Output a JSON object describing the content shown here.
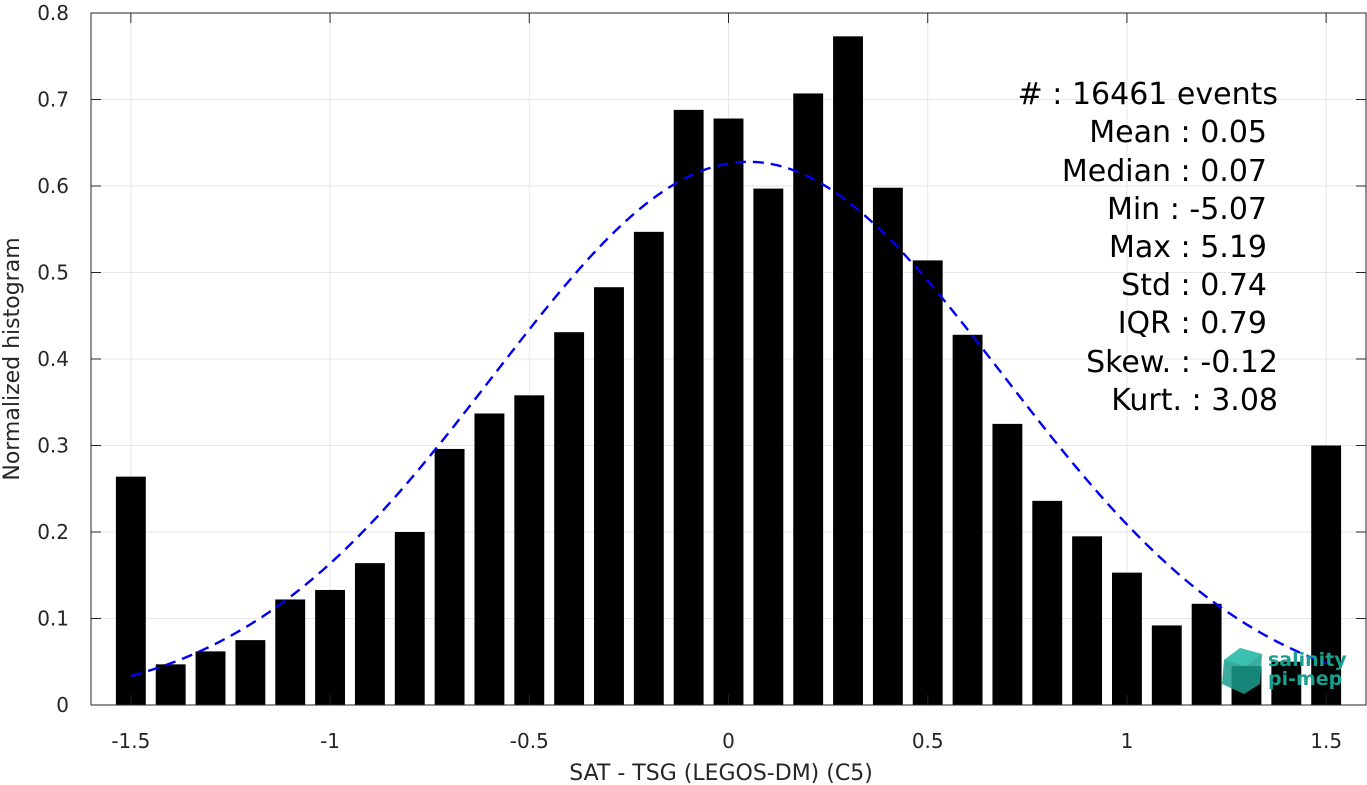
{
  "chart_data": {
    "type": "bar",
    "xlabel": "SAT - TSG (LEGOS-DM) (C5)",
    "ylabel": "Normalized histogram",
    "xlim": [
      -1.6,
      1.6
    ],
    "ylim": [
      0,
      0.8
    ],
    "xticks": [
      -1.5,
      -1,
      -0.5,
      0,
      0.5,
      1,
      1.5
    ],
    "xtick_labels": [
      "-1.5",
      "-1",
      "-0.5",
      "0",
      "0.5",
      "1",
      "1.5"
    ],
    "yticks": [
      0,
      0.1,
      0.2,
      0.3,
      0.4,
      0.5,
      0.6,
      0.7,
      0.8
    ],
    "ytick_labels": [
      "0",
      "0.1",
      "0.2",
      "0.3",
      "0.4",
      "0.5",
      "0.6",
      "0.7",
      "0.8"
    ],
    "grid": true,
    "bar_width": 0.075,
    "bar_color": "#000000",
    "x": [
      -1.5,
      -1.4,
      -1.3,
      -1.2,
      -1.1,
      -1.0,
      -0.9,
      -0.8,
      -0.7,
      -0.6,
      -0.5,
      -0.4,
      -0.3,
      -0.2,
      -0.1,
      0.0,
      0.1,
      0.2,
      0.3,
      0.4,
      0.5,
      0.6,
      0.7,
      0.8,
      0.9,
      1.0,
      1.1,
      1.2,
      1.3,
      1.4,
      1.5
    ],
    "values": [
      0.264,
      0.047,
      0.062,
      0.075,
      0.122,
      0.133,
      0.164,
      0.2,
      0.296,
      0.337,
      0.358,
      0.431,
      0.483,
      0.547,
      0.688,
      0.678,
      0.597,
      0.707,
      0.773,
      0.598,
      0.514,
      0.428,
      0.325,
      0.236,
      0.195,
      0.153,
      0.092,
      0.117,
      0.045,
      0.05,
      0.3
    ],
    "fit_curve": {
      "style": "dashed",
      "color": "#0000ee",
      "mean": 0.05,
      "std": 0.64,
      "peak": 0.628,
      "x_range": [
        -1.5,
        1.5
      ]
    },
    "annotations": [
      "#  : 16461 events",
      "Mean : 0.05",
      "Median : 0.07",
      "Min : -5.07",
      "Max : 5.19",
      "Std : 0.74",
      "IQR : 0.79",
      "Skew. : -0.12",
      "Kurt. : 3.08"
    ]
  },
  "logo": {
    "line1": "salinity",
    "line2": "pi-mep",
    "color": "#1a9e8f"
  }
}
